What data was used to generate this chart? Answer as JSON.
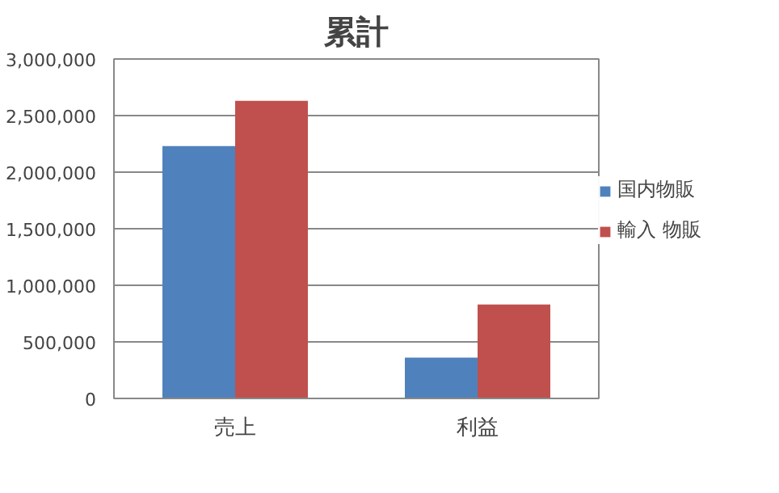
{
  "chart_data": {
    "type": "bar",
    "title": "累計",
    "categories": [
      "売上",
      "利益"
    ],
    "series": [
      {
        "name": "国内物販",
        "color": "#4f81bd",
        "values": [
          2230000,
          360000
        ]
      },
      {
        "name": "輸入 物販",
        "color": "#c0504d",
        "values": [
          2630000,
          830000
        ]
      }
    ],
    "ylim": [
      0,
      3000000
    ],
    "yticks": [
      {
        "value": 0,
        "label": "0"
      },
      {
        "value": 500000,
        "label": "500,000"
      },
      {
        "value": 1000000,
        "label": "1,000,000"
      },
      {
        "value": 1500000,
        "label": "1,500,000"
      },
      {
        "value": 2000000,
        "label": "2,000,000"
      },
      {
        "value": 2500000,
        "label": "2,500,000"
      },
      {
        "value": 3000000,
        "label": "3,000,000"
      }
    ],
    "grid": "y",
    "legend": "right"
  }
}
